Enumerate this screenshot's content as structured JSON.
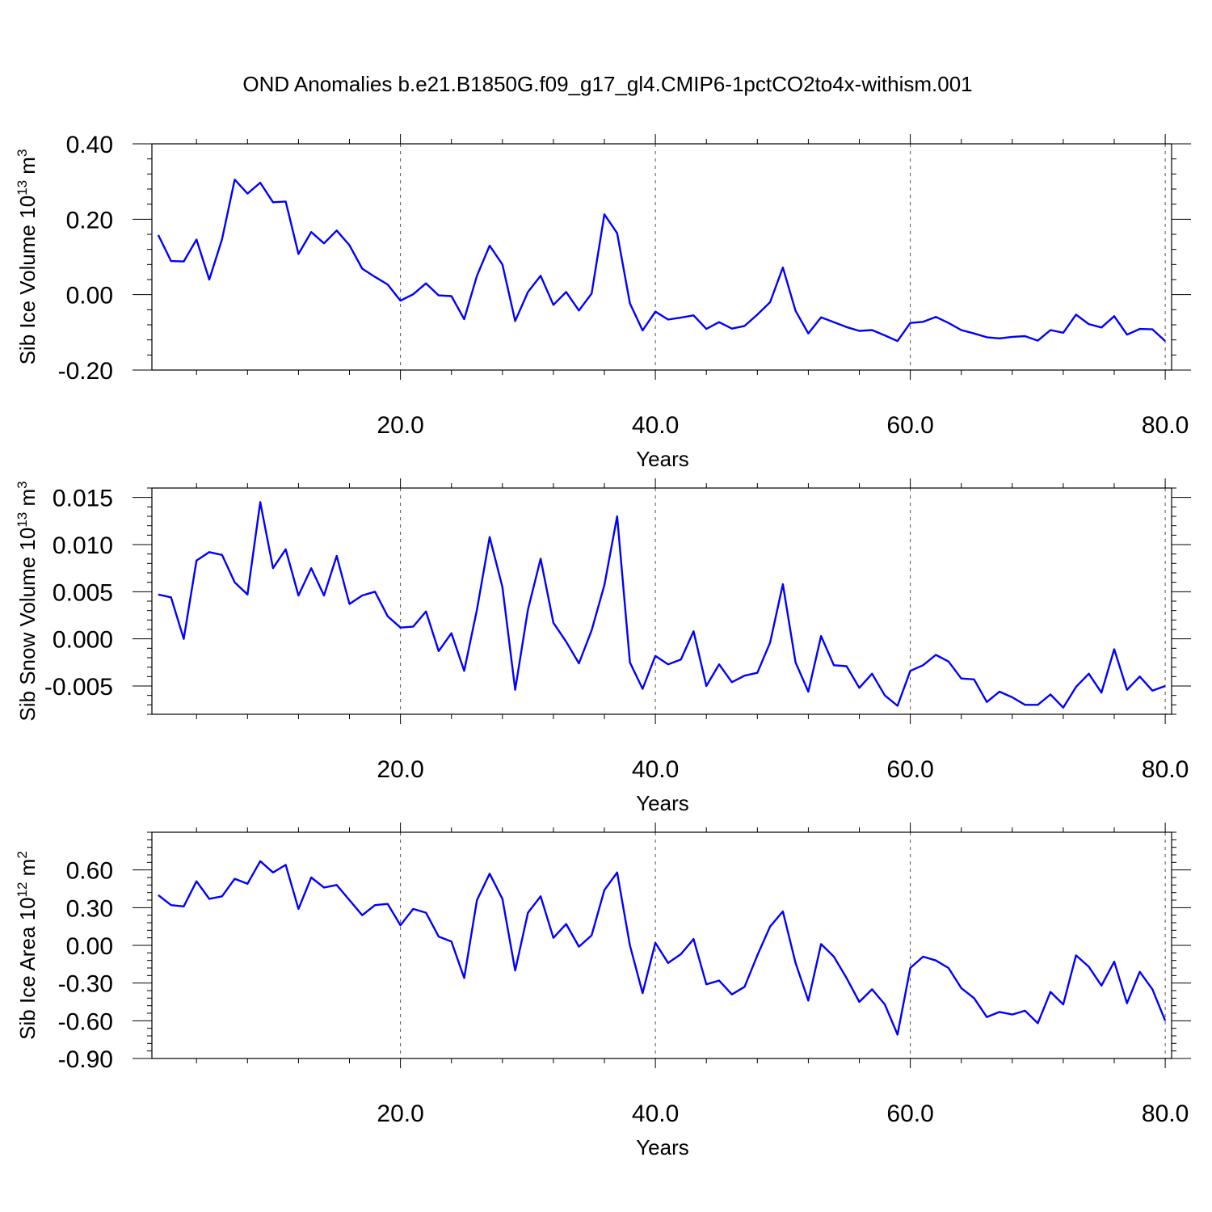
{
  "figure": {
    "title": "OND Anomalies b.e21.B1850G.f09_g17_gl4.CMIP6-1pctCO2to4x-withism.001"
  },
  "chart_data": [
    {
      "type": "line",
      "xlabel": "Years",
      "ylabel": {
        "main": "Sib Ice Volume 10",
        "exp": "13",
        "unit": " m",
        "unit_exp": "3"
      },
      "xlim": [
        0.5,
        80.5
      ],
      "ylim": [
        -0.2,
        0.4
      ],
      "x_ticks": [
        20,
        40,
        60,
        80
      ],
      "x_tick_labels": [
        "20.0",
        "40.0",
        "60.0",
        "80.0"
      ],
      "y_ticks": [
        -0.2,
        0.0,
        0.2,
        0.4
      ],
      "y_tick_labels": [
        "-0.20",
        "0.00",
        "0.20",
        "0.40"
      ],
      "y_minor_step": 0.04,
      "x_minor_step": 4,
      "grid": "dashed vertical lines at major x ticks",
      "series": [
        {
          "color": "#0000ff",
          "x": [
            1,
            2,
            3,
            4,
            5,
            6,
            7,
            8,
            9,
            10,
            11,
            12,
            13,
            14,
            15,
            16,
            17,
            18,
            19,
            20,
            21,
            22,
            23,
            24,
            25,
            26,
            27,
            28,
            29,
            30,
            31,
            32,
            33,
            34,
            35,
            36,
            37,
            38,
            39,
            40,
            41,
            42,
            43,
            44,
            45,
            46,
            47,
            48,
            49,
            50,
            51,
            52,
            53,
            54,
            55,
            56,
            57,
            58,
            59,
            60,
            61,
            62,
            63,
            64,
            65,
            66,
            67,
            68,
            69,
            70,
            71,
            72,
            73,
            74,
            75,
            76,
            77,
            78,
            79,
            80
          ],
          "values": [
            0.158,
            0.089,
            0.088,
            0.146,
            0.04,
            0.147,
            0.305,
            0.268,
            0.297,
            0.245,
            0.247,
            0.108,
            0.166,
            0.136,
            0.17,
            0.131,
            0.069,
            0.047,
            0.027,
            -0.016,
            0.001,
            0.03,
            -0.002,
            -0.004,
            -0.065,
            0.05,
            0.13,
            0.08,
            -0.07,
            0.007,
            0.05,
            -0.027,
            0.007,
            -0.042,
            0.003,
            0.213,
            0.163,
            -0.023,
            -0.095,
            -0.045,
            -0.066,
            -0.061,
            -0.055,
            -0.091,
            -0.073,
            -0.09,
            -0.083,
            -0.053,
            -0.02,
            0.072,
            -0.043,
            -0.103,
            -0.06,
            -0.073,
            -0.086,
            -0.096,
            -0.094,
            -0.108,
            -0.123,
            -0.075,
            -0.072,
            -0.059,
            -0.075,
            -0.094,
            -0.103,
            -0.113,
            -0.116,
            -0.112,
            -0.11,
            -0.122,
            -0.094,
            -0.101,
            -0.053,
            -0.078,
            -0.087,
            -0.057,
            -0.106,
            -0.091,
            -0.092,
            -0.123
          ]
        }
      ]
    },
    {
      "type": "line",
      "xlabel": "Years",
      "ylabel": {
        "main": "Sib Snow Volume 10",
        "exp": "13",
        "unit": " m",
        "unit_exp": "3"
      },
      "xlim": [
        0.5,
        80.5
      ],
      "ylim": [
        -0.008,
        0.016
      ],
      "x_ticks": [
        20,
        40,
        60,
        80
      ],
      "x_tick_labels": [
        "20.0",
        "40.0",
        "60.0",
        "80.0"
      ],
      "y_ticks": [
        -0.005,
        0.0,
        0.005,
        0.01,
        0.015
      ],
      "y_tick_labels": [
        "-0.005",
        "0.000",
        "0.005",
        "0.010",
        "0.015"
      ],
      "y_minor_step": 0.001,
      "x_minor_step": 4,
      "grid": "dashed vertical lines at major x ticks",
      "series": [
        {
          "color": "#0000ff",
          "x": [
            1,
            2,
            3,
            4,
            5,
            6,
            7,
            8,
            9,
            10,
            11,
            12,
            13,
            14,
            15,
            16,
            17,
            18,
            19,
            20,
            21,
            22,
            23,
            24,
            25,
            26,
            27,
            28,
            29,
            30,
            31,
            32,
            33,
            34,
            35,
            36,
            37,
            38,
            39,
            40,
            41,
            42,
            43,
            44,
            45,
            46,
            47,
            48,
            49,
            50,
            51,
            52,
            53,
            54,
            55,
            56,
            57,
            58,
            59,
            60,
            61,
            62,
            63,
            64,
            65,
            66,
            67,
            68,
            69,
            70,
            71,
            72,
            73,
            74,
            75,
            76,
            77,
            78,
            79,
            80
          ],
          "values": [
            0.0047,
            0.0044,
            0.0,
            0.0083,
            0.0092,
            0.0089,
            0.006,
            0.0047,
            0.0145,
            0.0075,
            0.0095,
            0.0046,
            0.0075,
            0.0046,
            0.0088,
            0.0037,
            0.0046,
            0.005,
            0.0024,
            0.0012,
            0.0013,
            0.0029,
            -0.0013,
            0.0006,
            -0.0034,
            0.0031,
            0.0108,
            0.0055,
            -0.0054,
            0.0031,
            0.0085,
            0.0017,
            -0.0003,
            -0.0026,
            0.0009,
            0.0057,
            0.013,
            -0.0025,
            -0.0053,
            -0.0018,
            -0.0027,
            -0.0022,
            0.0008,
            -0.005,
            -0.0027,
            -0.0046,
            -0.0039,
            -0.0036,
            -0.0004,
            0.0058,
            -0.0025,
            -0.0056,
            0.0003,
            -0.0028,
            -0.0029,
            -0.0052,
            -0.0037,
            -0.006,
            -0.0071,
            -0.0034,
            -0.0028,
            -0.0017,
            -0.0024,
            -0.0042,
            -0.0043,
            -0.0067,
            -0.0056,
            -0.0062,
            -0.007,
            -0.007,
            -0.0059,
            -0.0073,
            -0.0051,
            -0.0037,
            -0.0057,
            -0.0011,
            -0.0054,
            -0.004,
            -0.0055,
            -0.005
          ]
        }
      ]
    },
    {
      "type": "line",
      "xlabel": "Years",
      "ylabel": {
        "main": "Sib Ice Area 10",
        "exp": "12",
        "unit": " m",
        "unit_exp": "2"
      },
      "xlim": [
        0.5,
        80.5
      ],
      "ylim": [
        -0.9,
        0.9
      ],
      "x_ticks": [
        20,
        40,
        60,
        80
      ],
      "x_tick_labels": [
        "20.0",
        "40.0",
        "60.0",
        "80.0"
      ],
      "y_ticks": [
        -0.9,
        -0.6,
        -0.3,
        0.0,
        0.3,
        0.6
      ],
      "y_tick_labels": [
        "-0.90",
        "-0.60",
        "-0.30",
        "0.00",
        "0.30",
        "0.60"
      ],
      "y_minor_step": 0.06,
      "x_minor_step": 4,
      "grid": "dashed vertical lines at major x ticks",
      "series": [
        {
          "color": "#0000ff",
          "x": [
            1,
            2,
            3,
            4,
            5,
            6,
            7,
            8,
            9,
            10,
            11,
            12,
            13,
            14,
            15,
            16,
            17,
            18,
            19,
            20,
            21,
            22,
            23,
            24,
            25,
            26,
            27,
            28,
            29,
            30,
            31,
            32,
            33,
            34,
            35,
            36,
            37,
            38,
            39,
            40,
            41,
            42,
            43,
            44,
            45,
            46,
            47,
            48,
            49,
            50,
            51,
            52,
            53,
            54,
            55,
            56,
            57,
            58,
            59,
            60,
            61,
            62,
            63,
            64,
            65,
            66,
            67,
            68,
            69,
            70,
            71,
            72,
            73,
            74,
            75,
            76,
            77,
            78,
            79,
            80
          ],
          "values": [
            0.4,
            0.32,
            0.31,
            0.51,
            0.37,
            0.39,
            0.53,
            0.49,
            0.67,
            0.58,
            0.64,
            0.29,
            0.54,
            0.46,
            0.48,
            0.36,
            0.24,
            0.32,
            0.33,
            0.16,
            0.29,
            0.26,
            0.07,
            0.03,
            -0.26,
            0.36,
            0.57,
            0.37,
            -0.2,
            0.26,
            0.39,
            0.06,
            0.17,
            -0.01,
            0.08,
            0.44,
            0.58,
            0.0,
            -0.38,
            0.02,
            -0.14,
            -0.07,
            0.05,
            -0.31,
            -0.28,
            -0.39,
            -0.33,
            -0.08,
            0.15,
            0.27,
            -0.14,
            -0.44,
            0.01,
            -0.09,
            -0.26,
            -0.45,
            -0.35,
            -0.47,
            -0.71,
            -0.18,
            -0.09,
            -0.12,
            -0.18,
            -0.34,
            -0.42,
            -0.57,
            -0.53,
            -0.55,
            -0.52,
            -0.62,
            -0.37,
            -0.47,
            -0.08,
            -0.17,
            -0.32,
            -0.13,
            -0.46,
            -0.21,
            -0.35,
            -0.6
          ]
        }
      ]
    }
  ]
}
